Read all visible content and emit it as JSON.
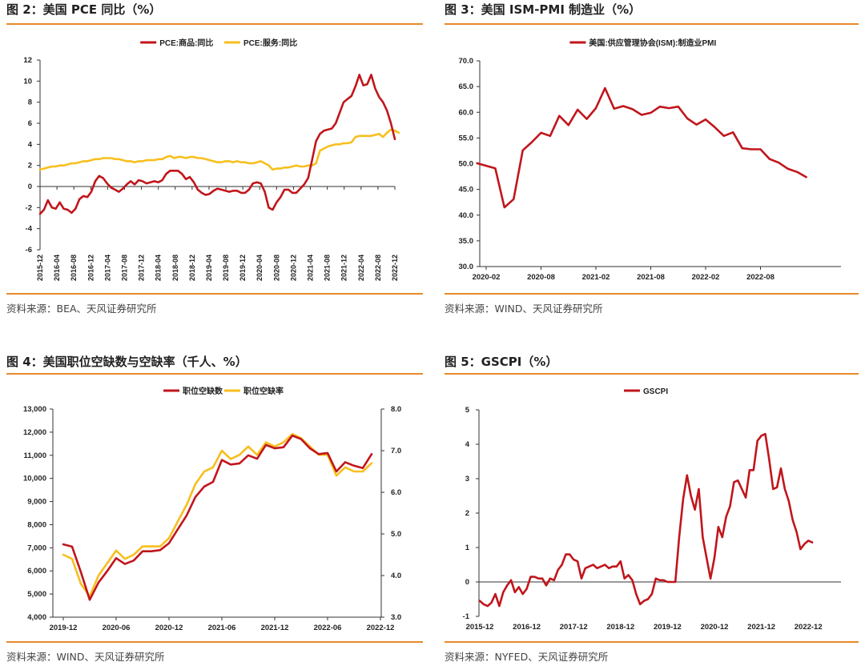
{
  "colors": {
    "accent_rule": "#e8892b",
    "red": "#c0161c",
    "yellow": "#f7bf1e"
  },
  "panels": {
    "p2": {
      "title": "图 2：美国 PCE 同比（%）",
      "source": "资料来源：BEA、天风证券研究所"
    },
    "p3": {
      "title": "图 3：美国 ISM-PMI 制造业（%）",
      "source": "资料来源：WIND、天风证券研究所"
    },
    "p4": {
      "title": "图 4：美国职位空缺数与空缺率（千人、%）",
      "source": "资料来源：WIND、天风证券研究所"
    },
    "p5": {
      "title": "图 5：GSCPI（%）",
      "source": "资料来源：NYFED、天风证券研究所"
    }
  },
  "chart_data": [
    {
      "id": "pce",
      "type": "line",
      "x_tick_labels": [
        "2015-12",
        "2016-04",
        "2016-08",
        "2016-12",
        "2017-04",
        "2017-08",
        "2017-12",
        "2018-04",
        "2018-08",
        "2018-12",
        "2019-04",
        "2019-08",
        "2019-12",
        "2020-04",
        "2020-08",
        "2020-12",
        "2021-04",
        "2021-08",
        "2021-12",
        "2022-04",
        "2022-08",
        "2022-12"
      ],
      "y_ticks": [
        12,
        10,
        8,
        6,
        4,
        2,
        0,
        -2,
        -4,
        -6
      ],
      "ylim": [
        -6,
        12
      ],
      "legend_position": "top-center",
      "series": [
        {
          "name": "PCE:商品:同比",
          "color": "#c0161c",
          "values": [
            -2.6,
            -2.2,
            -1.3,
            -2.0,
            -2.1,
            -1.5,
            -2.1,
            -2.2,
            -2.5,
            -2.1,
            -1.2,
            -0.9,
            -1.0,
            -0.5,
            0.5,
            1.0,
            0.8,
            0.3,
            -0.1,
            -0.3,
            -0.5,
            -0.2,
            0.2,
            0.5,
            0.2,
            0.6,
            0.5,
            0.3,
            0.4,
            0.5,
            0.4,
            0.6,
            1.2,
            1.5,
            1.5,
            1.5,
            1.2,
            0.7,
            0.9,
            0.4,
            -0.3,
            -0.6,
            -0.8,
            -0.7,
            -0.4,
            -0.2,
            -0.3,
            -0.4,
            -0.5,
            -0.4,
            -0.4,
            -0.6,
            -0.6,
            -0.3,
            0.3,
            0.4,
            0.3,
            -0.5,
            -2.0,
            -2.2,
            -1.5,
            -1.0,
            -0.3,
            -0.3,
            -0.6,
            -0.6,
            -0.2,
            0.2,
            0.8,
            2.5,
            4.3,
            5.0,
            5.3,
            5.4,
            5.5,
            6.0,
            7.0,
            8.0,
            8.3,
            8.6,
            9.5,
            10.6,
            9.6,
            9.7,
            10.6,
            9.3,
            8.5,
            8.0,
            7.2,
            6.0,
            4.5
          ]
        },
        {
          "name": "PCE:服务:同比",
          "color": "#f7bf1e",
          "values": [
            1.6,
            1.7,
            1.8,
            1.9,
            1.9,
            2.0,
            2.0,
            2.1,
            2.2,
            2.2,
            2.3,
            2.4,
            2.4,
            2.5,
            2.6,
            2.6,
            2.7,
            2.7,
            2.7,
            2.6,
            2.6,
            2.5,
            2.4,
            2.4,
            2.3,
            2.4,
            2.4,
            2.5,
            2.5,
            2.5,
            2.6,
            2.6,
            2.8,
            2.9,
            2.7,
            2.8,
            2.8,
            2.7,
            2.8,
            2.8,
            2.7,
            2.7,
            2.6,
            2.5,
            2.4,
            2.3,
            2.3,
            2.4,
            2.4,
            2.3,
            2.4,
            2.3,
            2.3,
            2.2,
            2.2,
            2.3,
            2.4,
            2.2,
            2.0,
            1.6,
            1.7,
            1.7,
            1.8,
            1.8,
            1.9,
            2.0,
            1.9,
            1.9,
            2.0,
            2.0,
            2.2,
            3.4,
            3.6,
            3.8,
            3.9,
            4.0,
            4.0,
            4.1,
            4.1,
            4.2,
            4.7,
            4.8,
            4.8,
            4.8,
            4.8,
            4.9,
            5.0,
            4.7,
            5.1,
            5.4,
            5.3,
            5.1
          ]
        }
      ]
    },
    {
      "id": "ism_pmi",
      "type": "line",
      "x_tick_labels": [
        "2020-02",
        "2020-08",
        "2021-02",
        "2021-08",
        "2022-02",
        "2022-08"
      ],
      "x_start": "2020-01",
      "y_ticks": [
        "70.0",
        "65.0",
        "60.0",
        "55.0",
        "50.0",
        "45.0",
        "40.0",
        "35.0",
        "30.0"
      ],
      "ylim": [
        30,
        70
      ],
      "legend_position": "top-center",
      "series": [
        {
          "name": "美国:供应管理协会(ISM):制造业PMI",
          "color": "#c0161c",
          "values": [
            50.1,
            49.6,
            49.1,
            41.5,
            43.1,
            52.6,
            54.2,
            56.0,
            55.4,
            59.3,
            57.5,
            60.5,
            58.7,
            60.8,
            64.7,
            60.7,
            61.2,
            60.6,
            59.5,
            59.9,
            61.1,
            60.8,
            61.1,
            58.8,
            57.6,
            58.6,
            57.1,
            55.4,
            56.1,
            53.0,
            52.8,
            52.8,
            50.9,
            50.2,
            49.0,
            48.4,
            47.4
          ]
        }
      ]
    },
    {
      "id": "job_openings",
      "type": "line",
      "x_tick_labels": [
        "2019-12",
        "2020-06",
        "2020-12",
        "2021-06",
        "2021-12",
        "2022-06",
        "2022-12"
      ],
      "x_start": "2019-12",
      "y_ticks_left": [
        "13,000",
        "12,000",
        "11,000",
        "10,000",
        "9,000",
        "8,000",
        "7,000",
        "6,000",
        "5,000",
        "4,000"
      ],
      "y_ticks_right": [
        "8.0",
        "7.0",
        "6.0",
        "5.0",
        "4.0",
        "3.0"
      ],
      "ylim_left": [
        4000,
        13000
      ],
      "ylim_right": [
        3.0,
        8.0
      ],
      "legend_position": "top-center",
      "series": [
        {
          "name": "职位空缺数",
          "color": "#c0161c",
          "axis": "left",
          "values": [
            7150,
            7050,
            5950,
            4750,
            5500,
            6000,
            6550,
            6300,
            6450,
            6850,
            6850,
            6900,
            7200,
            7800,
            8400,
            9200,
            9650,
            9850,
            10800,
            10600,
            10650,
            11000,
            10850,
            11450,
            11300,
            11350,
            11850,
            11700,
            11300,
            11050,
            11100,
            10300,
            10700,
            10550,
            10450,
            11050
          ]
        },
        {
          "name": "职位空缺率",
          "color": "#f7bf1e",
          "axis": "right",
          "values": [
            4.5,
            4.4,
            3.8,
            3.5,
            4.0,
            4.3,
            4.6,
            4.4,
            4.5,
            4.7,
            4.7,
            4.7,
            4.9,
            5.3,
            5.7,
            6.2,
            6.5,
            6.6,
            7.0,
            6.8,
            6.9,
            7.1,
            6.9,
            7.2,
            7.1,
            7.2,
            7.4,
            7.3,
            7.1,
            6.9,
            6.9,
            6.4,
            6.6,
            6.5,
            6.5,
            6.7
          ]
        }
      ]
    },
    {
      "id": "gscpi",
      "type": "line",
      "x_tick_labels": [
        "2015-12",
        "2016-12",
        "2017-12",
        "2018-12",
        "2019-12",
        "2020-12",
        "2021-12",
        "2022-12"
      ],
      "x_start": "2015-12",
      "y_ticks": [
        5,
        4,
        3,
        2,
        1,
        0,
        -1
      ],
      "ylim": [
        -1,
        5
      ],
      "legend_position": "top-center",
      "series": [
        {
          "name": "GSCPI",
          "color": "#c0161c",
          "values": [
            -0.55,
            -0.65,
            -0.7,
            -0.6,
            -0.35,
            -0.7,
            -0.3,
            -0.1,
            0.05,
            -0.3,
            -0.15,
            -0.35,
            -0.2,
            0.15,
            0.15,
            0.1,
            0.1,
            -0.1,
            0.1,
            0.05,
            0.35,
            0.5,
            0.8,
            0.8,
            0.65,
            0.6,
            0.1,
            0.4,
            0.45,
            0.5,
            0.4,
            0.45,
            0.5,
            0.4,
            0.45,
            0.45,
            0.6,
            0.1,
            0.2,
            0.05,
            -0.35,
            -0.65,
            -0.55,
            -0.5,
            -0.35,
            0.1,
            0.05,
            0.05,
            0.0,
            0.0,
            0.0,
            1.3,
            2.4,
            3.1,
            2.5,
            2.1,
            2.7,
            1.3,
            0.7,
            0.1,
            0.7,
            1.6,
            1.3,
            1.9,
            2.2,
            2.9,
            2.95,
            2.7,
            2.45,
            3.25,
            3.25,
            4.1,
            4.25,
            4.3,
            3.55,
            2.7,
            2.75,
            3.3,
            2.7,
            2.35,
            1.8,
            1.45,
            0.95,
            1.1,
            1.2,
            1.15
          ]
        }
      ]
    }
  ]
}
